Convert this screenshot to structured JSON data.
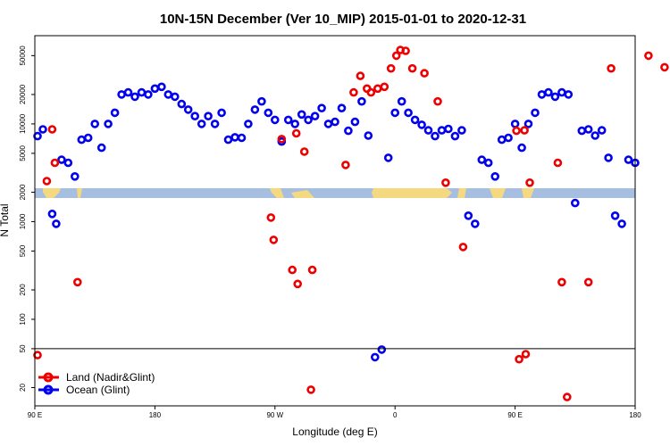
{
  "chart_data": {
    "type": "scatter",
    "title": "10N-15N December (Ver 10_MIP)   2015-01-01 to 2020-12-31",
    "xlabel": "Longitude (deg E)",
    "ylabel": "N Total",
    "y_scale": "log",
    "x_ticks": [
      {
        "lon": 90,
        "label": "90 E"
      },
      {
        "lon": 180,
        "label": "180"
      },
      {
        "lon": 270,
        "label": "90 W"
      },
      {
        "lon": 360,
        "label": "0"
      },
      {
        "lon": 450,
        "label": "90 E"
      },
      {
        "lon": 540,
        "label": "180"
      }
    ],
    "y_ticks": [
      {
        "value": 20,
        "label": "20"
      },
      {
        "value": 50,
        "label": "50"
      },
      {
        "value": 100,
        "label": "100"
      },
      {
        "value": 200,
        "label": "200"
      },
      {
        "value": 500,
        "label": "500"
      },
      {
        "value": 1000,
        "label": "1000"
      },
      {
        "value": 2000,
        "label": "2000"
      },
      {
        "value": 5000,
        "label": "5000"
      },
      {
        "value": 10000,
        "label": "10000"
      },
      {
        "value": 20000,
        "label": "20000"
      },
      {
        "value": 50000,
        "label": "50000"
      }
    ],
    "xlim": [
      90,
      540
    ],
    "ylim": [
      13,
      80000
    ],
    "reference_line": 50,
    "legend": {
      "position": "bottom-left"
    },
    "series": [
      {
        "name": "Land (Nadir&Glint)",
        "color": "#ee0000",
        "x": [
          92,
          99,
          103,
          105,
          122,
          267,
          269,
          275,
          283,
          286,
          287,
          292,
          298,
          297,
          323,
          329,
          334,
          339,
          342,
          347,
          352,
          357,
          361,
          364,
          368,
          373,
          382,
          392,
          398,
          411,
          451,
          453,
          457,
          458,
          461,
          482,
          485,
          489,
          505,
          522,
          550,
          562
        ],
        "y": [
          43,
          2600,
          8800,
          4000,
          240,
          1100,
          650,
          7000,
          320,
          8000,
          230,
          5200,
          320,
          19,
          3800,
          21000,
          31000,
          23000,
          21000,
          23000,
          24000,
          37000,
          50000,
          57000,
          56000,
          37000,
          33000,
          17000,
          2500,
          550,
          8500,
          39,
          8600,
          44,
          2500,
          4000,
          240,
          16,
          240,
          37000,
          50000,
          38000
        ]
      },
      {
        "name": "Ocean (Glint)",
        "color": "#0000ee",
        "x": [
          92,
          96,
          103,
          106,
          110,
          115,
          120,
          125,
          130,
          135,
          140,
          145,
          150,
          155,
          160,
          165,
          170,
          175,
          180,
          185,
          190,
          195,
          200,
          205,
          210,
          215,
          220,
          225,
          230,
          235,
          240,
          245,
          250,
          255,
          260,
          265,
          270,
          275,
          280,
          285,
          290,
          295,
          300,
          305,
          310,
          315,
          320,
          325,
          330,
          335,
          340,
          345,
          350,
          355,
          360,
          365,
          370,
          375,
          380,
          385,
          390,
          395,
          400,
          405,
          410,
          415,
          420,
          425,
          430,
          435,
          440,
          445,
          450,
          455,
          460,
          465,
          470,
          475,
          480,
          485,
          490,
          495,
          500,
          505,
          510,
          515,
          520,
          525,
          530,
          535,
          540
        ],
        "y": [
          7500,
          8800,
          1200,
          950,
          4300,
          4000,
          2900,
          6900,
          7200,
          10000,
          5700,
          10000,
          13000,
          20000,
          21000,
          19000,
          21000,
          20000,
          23000,
          24000,
          20000,
          19000,
          16000,
          14000,
          12000,
          10000,
          12000,
          10000,
          13000,
          6900,
          7300,
          7200,
          10000,
          14000,
          17000,
          13000,
          11000,
          6600,
          11000,
          10000,
          12500,
          11000,
          12000,
          14500,
          10000,
          10500,
          14500,
          8500,
          10500,
          17000,
          7600,
          41,
          49,
          4500,
          13000,
          17000,
          13000,
          11000,
          9800,
          8600,
          7500,
          8600,
          8900,
          7500,
          8600,
          1150,
          950,
          4300,
          4000,
          2900,
          6900,
          7200,
          10000,
          5700,
          10000,
          13000,
          20000,
          21000,
          19000,
          21000,
          20000,
          1550,
          8500,
          8800,
          7600,
          8600,
          4500,
          1150,
          950,
          4300,
          4000
        ]
      }
    ]
  }
}
